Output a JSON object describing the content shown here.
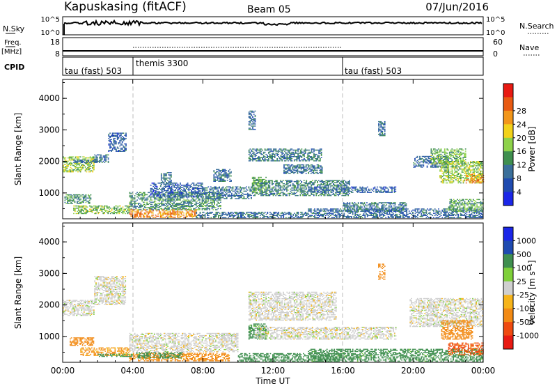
{
  "header": {
    "station": "Kapuskasing (fitACF)",
    "beam": "Beam 05",
    "date": "07/Jun/2016"
  },
  "strip_nsky": {
    "label": "N.Sky",
    "right_label": "N.Search",
    "ticks_left": [
      "10^5",
      "10^0"
    ],
    "ticks_right": [
      "10^5",
      "10^0"
    ]
  },
  "strip_freq": {
    "label_top": "Freq.",
    "label_bottom": "[MHz]",
    "right_label": "Nave",
    "ticks_left": [
      "18",
      "8"
    ],
    "ticks_right": [
      "60",
      "0"
    ]
  },
  "cpid": {
    "label": "CPID",
    "segments": [
      {
        "start": 0,
        "end": 4,
        "text": "tau (fast) 503"
      },
      {
        "start": 4,
        "end": 16,
        "text": "themis 3300"
      },
      {
        "start": 16,
        "end": 24,
        "text": "tau (fast) 503"
      }
    ]
  },
  "power_panel": {
    "ylabel": "Slant Range [km]",
    "yticks": [
      "1000",
      "2000",
      "3000",
      "4000"
    ],
    "colorbar_label": "Power [dB]",
    "colorbar_ticks": [
      "4",
      "8",
      "12",
      "16",
      "20",
      "24",
      "28"
    ]
  },
  "velocity_panel": {
    "ylabel": "Slant Range [km]",
    "yticks": [
      "1000",
      "2000",
      "3000",
      "4000"
    ],
    "colorbar_label": "Velocity [m s⁻¹]",
    "colorbar_ticks": [
      "1000",
      "500",
      "100",
      "25",
      "-25",
      "-100",
      "-500",
      "-1000"
    ]
  },
  "xaxis": {
    "ticks": [
      "00:00",
      "04:00",
      "08:00",
      "12:00",
      "16:00",
      "20:00",
      "00:00"
    ],
    "label": "Time UT"
  },
  "chart_data": [
    {
      "type": "heatmap",
      "title": "",
      "xlabel": "Time UT",
      "ylabel": "Slant Range [km]",
      "xlim": [
        0,
        24
      ],
      "ylim": [
        180,
        4600
      ],
      "value_label": "Power [dB]",
      "color_scale": {
        "levels": [
          0,
          4,
          8,
          12,
          16,
          20,
          24,
          28,
          32
        ],
        "colors": [
          "#1b26e8",
          "#1f4bb0",
          "#3a6f9a",
          "#3f8f4f",
          "#8ed24a",
          "#f2d21a",
          "#f2961a",
          "#e85a12",
          "#e81a12"
        ]
      },
      "regions": [
        {
          "t0": 0.0,
          "t1": 1.8,
          "r0": 1650,
          "r1": 2150,
          "power": 18
        },
        {
          "t0": 0.6,
          "t1": 2.2,
          "r0": 1950,
          "r1": 2050,
          "power": 8
        },
        {
          "t0": 1.8,
          "t1": 2.6,
          "r0": 1950,
          "r1": 2200,
          "power": 10
        },
        {
          "t0": 2.6,
          "t1": 3.6,
          "r0": 2300,
          "r1": 2900,
          "power": 8
        },
        {
          "t0": 0.1,
          "t1": 1.6,
          "r0": 650,
          "r1": 950,
          "power": 13
        },
        {
          "t0": 0.6,
          "t1": 3.8,
          "r0": 330,
          "r1": 600,
          "power": 17
        },
        {
          "t0": 3.8,
          "t1": 7.6,
          "r0": 210,
          "r1": 480,
          "power": 27
        },
        {
          "t0": 3.8,
          "t1": 9.0,
          "r0": 450,
          "r1": 1000,
          "power": 13
        },
        {
          "t0": 5.0,
          "t1": 8.0,
          "r0": 850,
          "r1": 1300,
          "power": 8
        },
        {
          "t0": 7.6,
          "t1": 14.0,
          "r0": 200,
          "r1": 400,
          "power": 10
        },
        {
          "t0": 5.6,
          "t1": 6.2,
          "r0": 1250,
          "r1": 1650,
          "power": 10
        },
        {
          "t0": 8.6,
          "t1": 9.6,
          "r0": 1350,
          "r1": 1750,
          "power": 10
        },
        {
          "t0": 8.0,
          "t1": 10.8,
          "r0": 800,
          "r1": 1200,
          "power": 10
        },
        {
          "t0": 10.6,
          "t1": 14.8,
          "r0": 2000,
          "r1": 2400,
          "power": 11
        },
        {
          "t0": 12.6,
          "t1": 14.8,
          "r0": 1600,
          "r1": 1900,
          "power": 10
        },
        {
          "t0": 10.8,
          "t1": 16.4,
          "r0": 900,
          "r1": 1400,
          "power": 12
        },
        {
          "t0": 10.8,
          "t1": 11.6,
          "r0": 1000,
          "r1": 1500,
          "power": 15
        },
        {
          "t0": 14.0,
          "t1": 19.0,
          "r0": 1000,
          "r1": 1200,
          "power": 8
        },
        {
          "t0": 14.0,
          "t1": 24.0,
          "r0": 200,
          "r1": 500,
          "power": 9
        },
        {
          "t0": 18.0,
          "t1": 18.4,
          "r0": 2800,
          "r1": 3250,
          "power": 10
        },
        {
          "t0": 16.0,
          "t1": 19.6,
          "r0": 400,
          "r1": 700,
          "power": 10
        },
        {
          "t0": 20.0,
          "t1": 22.0,
          "r0": 1800,
          "r1": 2150,
          "power": 9
        },
        {
          "t0": 21.0,
          "t1": 23.0,
          "r0": 1900,
          "r1": 2400,
          "power": 16
        },
        {
          "t0": 21.5,
          "t1": 24.0,
          "r0": 1300,
          "r1": 2000,
          "power": 18
        },
        {
          "t0": 23.0,
          "t1": 24.0,
          "r0": 1300,
          "r1": 1600,
          "power": 26
        },
        {
          "t0": 22.0,
          "t1": 24.0,
          "r0": 400,
          "r1": 800,
          "power": 15
        },
        {
          "t0": 10.6,
          "t1": 11.0,
          "r0": 3000,
          "r1": 3600,
          "power": 10
        }
      ]
    },
    {
      "type": "heatmap",
      "title": "",
      "xlabel": "Time UT",
      "ylabel": "Slant Range [km]",
      "xlim": [
        0,
        24
      ],
      "ylim": [
        180,
        4600
      ],
      "value_label": "Velocity [m s⁻¹]",
      "color_scale": {
        "levels": [
          -1500,
          -1000,
          -500,
          -100,
          -25,
          25,
          100,
          500,
          1000,
          1500
        ],
        "colors": [
          "#e81a12",
          "#ef4a10",
          "#f28a14",
          "#f6b41a",
          "#cfcfcf",
          "#7fd03a",
          "#3f8f4f",
          "#1f4bb0",
          "#1b26e8"
        ]
      },
      "regions": [
        {
          "t0": 0.0,
          "t1": 1.8,
          "r0": 1650,
          "r1": 2150,
          "vel": 0
        },
        {
          "t0": 1.8,
          "t1": 3.6,
          "r0": 2000,
          "r1": 2900,
          "vel": 0
        },
        {
          "t0": 0.4,
          "t1": 1.8,
          "r0": 700,
          "r1": 950,
          "vel": -350
        },
        {
          "t0": 1.0,
          "t1": 3.8,
          "r0": 380,
          "r1": 650,
          "vel": -120
        },
        {
          "t0": 2.0,
          "t1": 4.0,
          "r0": 350,
          "r1": 450,
          "vel": 150
        },
        {
          "t0": 3.8,
          "t1": 9.5,
          "r0": 210,
          "r1": 450,
          "vel": -150
        },
        {
          "t0": 4.2,
          "t1": 6.8,
          "r0": 300,
          "r1": 500,
          "vel": 160
        },
        {
          "t0": 3.8,
          "t1": 10.0,
          "r0": 500,
          "r1": 1100,
          "vel": 0
        },
        {
          "t0": 10.0,
          "t1": 16.0,
          "r0": 200,
          "r1": 450,
          "vel": 200
        },
        {
          "t0": 10.6,
          "t1": 15.6,
          "r0": 1500,
          "r1": 2400,
          "vel": 0
        },
        {
          "t0": 10.6,
          "t1": 11.6,
          "r0": 900,
          "r1": 1400,
          "vel": 150
        },
        {
          "t0": 11.0,
          "t1": 19.0,
          "r0": 900,
          "r1": 1300,
          "vel": 0
        },
        {
          "t0": 14.0,
          "t1": 24.0,
          "r0": 200,
          "r1": 600,
          "vel": 160
        },
        {
          "t0": 18.0,
          "t1": 18.4,
          "r0": 2800,
          "r1": 3300,
          "vel": -350
        },
        {
          "t0": 19.8,
          "t1": 24.0,
          "r0": 1300,
          "r1": 2200,
          "vel": 0
        },
        {
          "t0": 21.6,
          "t1": 23.4,
          "r0": 900,
          "r1": 1500,
          "vel": -350
        },
        {
          "t0": 22.0,
          "t1": 24.0,
          "r0": 400,
          "r1": 800,
          "vel": -600
        }
      ]
    }
  ]
}
